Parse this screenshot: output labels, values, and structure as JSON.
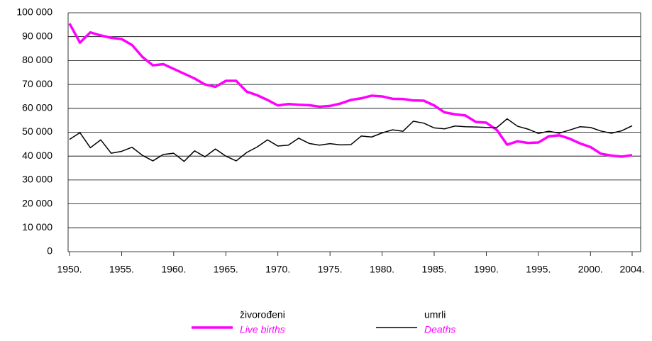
{
  "chart_data": {
    "type": "line",
    "x": [
      1950,
      1951,
      1952,
      1953,
      1954,
      1955,
      1956,
      1957,
      1958,
      1959,
      1960,
      1961,
      1962,
      1963,
      1964,
      1965,
      1966,
      1967,
      1968,
      1969,
      1970,
      1971,
      1972,
      1973,
      1974,
      1975,
      1976,
      1977,
      1978,
      1979,
      1980,
      1981,
      1982,
      1983,
      1984,
      1985,
      1986,
      1987,
      1988,
      1989,
      1990,
      1991,
      1992,
      1993,
      1994,
      1995,
      1996,
      1997,
      1998,
      1999,
      2000,
      2001,
      2002,
      2003,
      2004
    ],
    "series": [
      {
        "name": "živorođeni",
        "name_en": "Live births",
        "color": "#ff00ff",
        "width": 3.5,
        "values": [
          95500,
          87500,
          91800,
          90500,
          89500,
          89000,
          86500,
          81500,
          78000,
          78500,
          76500,
          74500,
          72500,
          70000,
          69000,
          71500,
          71500,
          67000,
          65500,
          63500,
          61200,
          61800,
          61500,
          61300,
          60700,
          61000,
          62000,
          63500,
          64200,
          65300,
          65000,
          64000,
          63900,
          63300,
          63200,
          61200,
          58300,
          57500,
          57000,
          54300,
          54000,
          51000,
          44800,
          46200,
          45500,
          45700,
          48300,
          48700,
          47300,
          45300,
          43800,
          41000,
          40200,
          39800,
          40400
        ]
      },
      {
        "name": "umrli",
        "name_en": "Deaths",
        "color": "#000000",
        "width": 1.5,
        "values": [
          47000,
          49800,
          43500,
          46800,
          41200,
          42000,
          43700,
          40300,
          38000,
          40700,
          41200,
          37800,
          42200,
          39700,
          43000,
          40000,
          38000,
          41500,
          43800,
          46800,
          44200,
          44600,
          47500,
          45300,
          44600,
          45200,
          44700,
          44800,
          48400,
          48000,
          49700,
          51000,
          50400,
          54600,
          53800,
          51800,
          51400,
          52600,
          52300,
          52200,
          52000,
          51900,
          55600,
          52500,
          51300,
          49500,
          50400,
          49600,
          50900,
          52300,
          52000,
          50500,
          49600,
          50600,
          52700
        ]
      }
    ],
    "xlim": [
      1950,
      2004
    ],
    "xticks": [
      {
        "value": 1950,
        "label": "1950."
      },
      {
        "value": 1955,
        "label": "1955."
      },
      {
        "value": 1960,
        "label": "1960."
      },
      {
        "value": 1965,
        "label": "1965."
      },
      {
        "value": 1970,
        "label": "1970."
      },
      {
        "value": 1975,
        "label": "1975."
      },
      {
        "value": 1980,
        "label": "1980."
      },
      {
        "value": 1985,
        "label": "1985."
      },
      {
        "value": 1990,
        "label": "1990."
      },
      {
        "value": 1995,
        "label": "1995."
      },
      {
        "value": 2000,
        "label": "2000."
      },
      {
        "value": 2004,
        "label": "2004."
      }
    ],
    "ylim": [
      0,
      100000
    ],
    "yticks": [
      0,
      {
        "value": 10000,
        "label": "10 000"
      },
      {
        "value": 20000,
        "label": "20 000"
      },
      {
        "value": 30000,
        "label": "30 000"
      },
      {
        "value": 40000,
        "label": "40 000"
      },
      {
        "value": 50000,
        "label": "50 000"
      },
      {
        "value": 60000,
        "label": "60 000"
      },
      {
        "value": 70000,
        "label": "70 000"
      },
      {
        "value": 80000,
        "label": "80 000"
      },
      {
        "value": 90000,
        "label": "90 000"
      },
      {
        "value": 100000,
        "label": "100 000"
      }
    ],
    "grid": true
  }
}
